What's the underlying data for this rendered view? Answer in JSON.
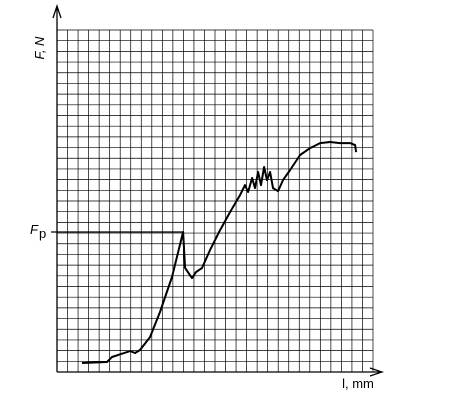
{
  "chart_data": {
    "type": "line",
    "y_label": "F, N",
    "x_label": "l, mm",
    "annotation": {
      "label": "F",
      "subscript": "p",
      "y": 13.1
    },
    "xlim": [
      0,
      30
    ],
    "ylim": [
      0,
      32
    ],
    "grid": true,
    "x": [
      2.37,
      4.75,
      5.22,
      6.93,
      7.41,
      7.88,
      8.83,
      9.78,
      10.92,
      11.97,
      12.16,
      12.82,
      13.2,
      13.77,
      14.53,
      15.48,
      16.43,
      17.38,
      17.85,
      18.14,
      18.52,
      18.8,
      19.09,
      19.37,
      19.66,
      19.94,
      20.23,
      20.51,
      20.99,
      21.46,
      22.13,
      23.08,
      24.03,
      24.98,
      25.93,
      26.88,
      27.83,
      28.3,
      28.4
    ],
    "series": [
      {
        "color": "#000000",
        "values": [
          0.84,
          0.94,
          1.4,
          1.96,
          1.78,
          2.06,
          3.27,
          5.61,
          8.89,
          13.1,
          9.73,
          8.79,
          9.35,
          9.73,
          11.41,
          13.28,
          14.97,
          16.56,
          17.49,
          16.84,
          18.15,
          17.21,
          18.71,
          17.49,
          19.18,
          17.96,
          18.71,
          17.21,
          16.93,
          17.96,
          18.9,
          20.3,
          20.95,
          21.42,
          21.52,
          21.42,
          21.42,
          21.23,
          20.58
        ]
      }
    ]
  }
}
